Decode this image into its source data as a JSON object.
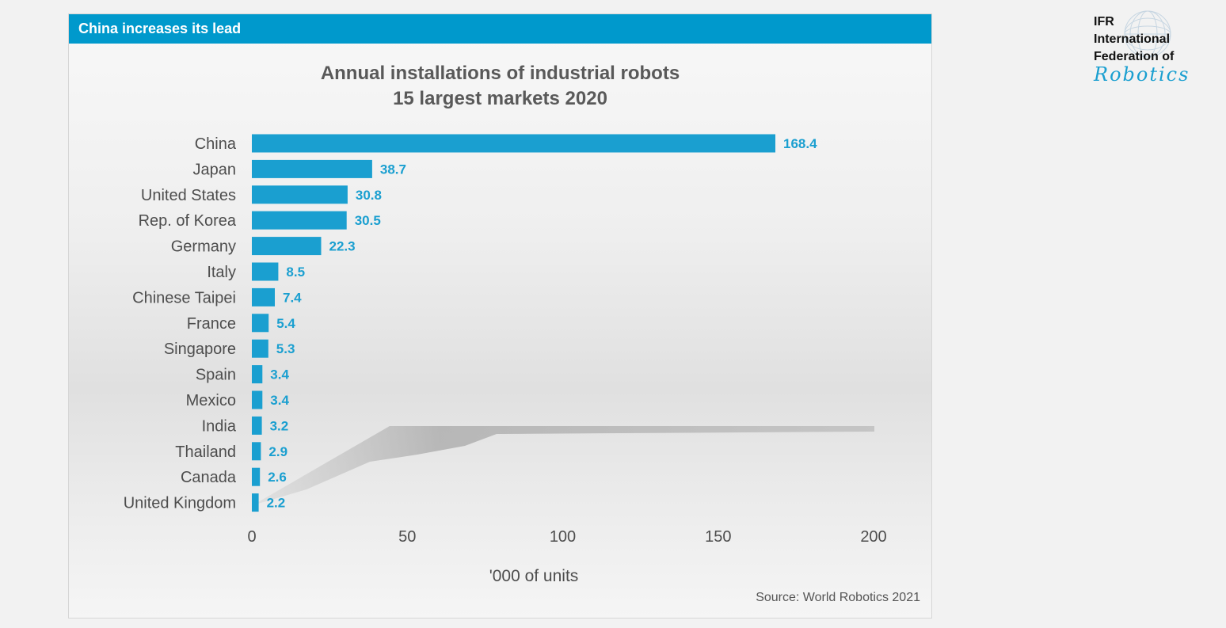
{
  "header": {
    "title": "China increases its lead"
  },
  "logo": {
    "line1": "IFR",
    "line2": "International",
    "line3": "Federation of",
    "script": "Robotics"
  },
  "source": "Source: World Robotics 2021",
  "colors": {
    "accent": "#0099cc",
    "bar": "#1a9fd0",
    "value_label": "#1a9fd0",
    "text": "#4d4d4d"
  },
  "chart_data": {
    "type": "bar",
    "orientation": "horizontal",
    "title": "Annual installations of industrial robots",
    "subtitle": "15 largest markets 2020",
    "xlabel": "'000 of units",
    "ylabel": "",
    "xlim": [
      0,
      200
    ],
    "xticks": [
      0,
      50,
      100,
      150,
      200
    ],
    "grid": false,
    "categories": [
      "China",
      "Japan",
      "United States",
      "Rep. of Korea",
      "Germany",
      "Italy",
      "Chinese Taipei",
      "France",
      "Singapore",
      "Spain",
      "Mexico",
      "India",
      "Thailand",
      "Canada",
      "United Kingdom"
    ],
    "values": [
      168.4,
      38.7,
      30.8,
      30.5,
      22.3,
      8.5,
      7.4,
      5.4,
      5.3,
      3.4,
      3.4,
      3.2,
      2.9,
      2.6,
      2.2
    ],
    "value_labels": [
      "168.4",
      "38.7",
      "30.8",
      "30.5",
      "22.3",
      "8.5",
      "7.4",
      "5.4",
      "5.3",
      "3.4",
      "3.4",
      "3.2",
      "2.9",
      "2.6",
      "2.2"
    ]
  }
}
